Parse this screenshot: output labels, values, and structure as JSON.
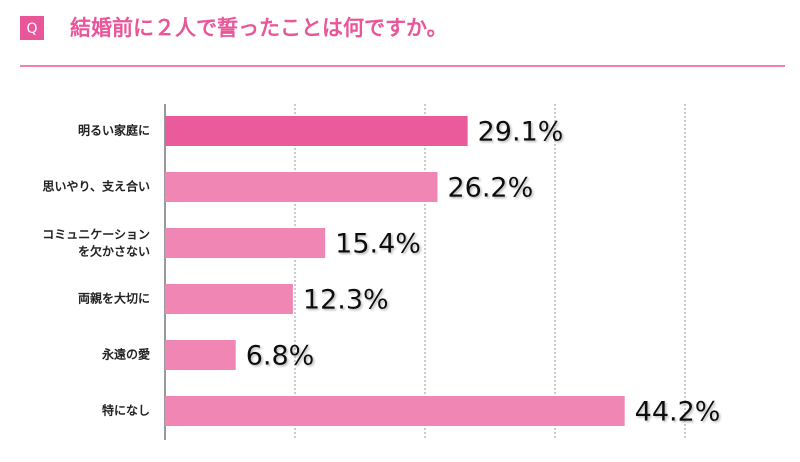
{
  "header": {
    "badge": "Q",
    "title": "結婚前に２人で誓ったことは何ですか。"
  },
  "chart_data": {
    "type": "hbar",
    "categories": [
      "明るい家庭に",
      "思いやり、支え合い",
      [
        "コミュニケーション",
        "を欠かさない"
      ],
      "両親を大切に",
      "永遠の愛",
      "特になし"
    ],
    "values": [
      29.1,
      26.2,
      15.4,
      12.3,
      6.8,
      44.2
    ],
    "value_labels": [
      "29.1%",
      "26.2%",
      "15.4%",
      "12.3%",
      "6.8%",
      "44.2%"
    ],
    "colors": [
      "#ea5b9b",
      "#ef86b3",
      "#ef86b3",
      "#ef86b3",
      "#ef86b3",
      "#ef86b3"
    ],
    "xlim": [
      0,
      50
    ],
    "xticks": [
      0,
      12.5,
      25,
      37.5,
      50
    ],
    "grid": true
  }
}
